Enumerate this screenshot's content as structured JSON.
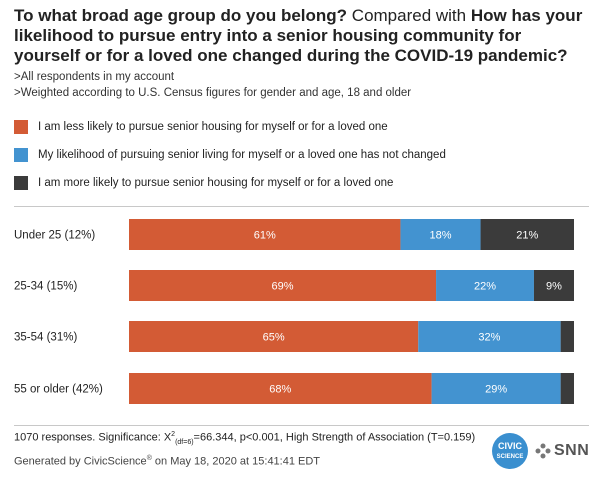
{
  "title": {
    "part1": "To what broad age group do you belong?",
    "part2": " Compared with ",
    "part3": "How has your likelihood to pursue entry into a senior housing community for yourself or for a loved one changed during the COVID-19 pandemic?"
  },
  "notes": [
    ">All respondents in my account",
    ">Weighted according to U.S. Census figures for gender and age, 18 and older"
  ],
  "colors": {
    "less": "#d35b35",
    "not_changed": "#4393d0",
    "more": "#3b3b3b"
  },
  "chart_data": {
    "type": "bar",
    "orientation": "horizontal",
    "stacked": true,
    "normalized": true,
    "categories": [
      "Under 25 (12%)",
      "25-34 (15%)",
      "35-54 (31%)",
      "55 or older (42%)"
    ],
    "series": [
      {
        "name": "I am less likely to pursue senior housing for myself or for a loved one",
        "values": [
          61,
          69,
          65,
          68
        ],
        "labels": [
          "61%",
          "69%",
          "65%",
          "68%"
        ]
      },
      {
        "name": "My likelihood of pursuing senior living for myself or a loved one has not changed",
        "values": [
          18,
          22,
          32,
          29
        ],
        "labels": [
          "18%",
          "22%",
          "32%",
          "29%"
        ]
      },
      {
        "name": "I am more likely to pursue senior housing for myself or for a loved one",
        "values": [
          21,
          9,
          3,
          3
        ],
        "labels": [
          "21%",
          "9%",
          "",
          ""
        ]
      }
    ],
    "legend_position": "top-left",
    "grid": false
  },
  "footer": {
    "responses": "1070 responses. Significance: X",
    "chi_sup": "2",
    "chi_sub": "(df=6)",
    "stats": "=66.344, p<0.001, High Strength of Association (T=0.159)",
    "generated_prefix": "Generated by CivicScience",
    "reg": "®",
    "generated_suffix": " on May 18, 2020 at 15:41:41 EDT"
  },
  "logos": {
    "civic_line1": "CIVIC",
    "civic_line2": "SCIENCE",
    "snn": "SNN"
  }
}
